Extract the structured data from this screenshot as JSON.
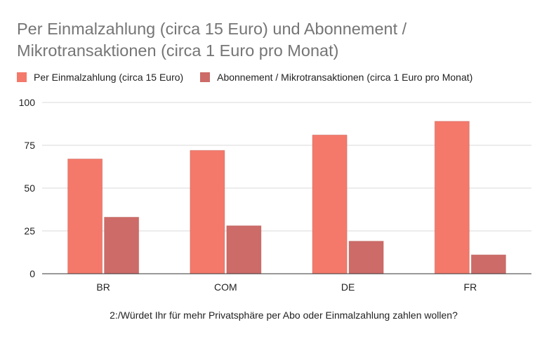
{
  "chart_data": {
    "type": "bar",
    "title": "Per Einmalzahlung (circa 15 Euro) und Abonnement / Mikrotransaktionen (circa 1 Euro pro Monat)",
    "xlabel": "2:/Würdet Ihr für mehr Privatsphäre per Abo oder Einmalzahlung zahlen wollen?",
    "ylabel": "",
    "categories": [
      "BR",
      "COM",
      "DE",
      "FR"
    ],
    "series": [
      {
        "name": "Per Einmalzahlung (circa 15 Euro)",
        "values": [
          67,
          72,
          81,
          89
        ],
        "color": "#f4796b"
      },
      {
        "name": "Abonnement / Mikrotransaktionen (circa 1 Euro pro Monat)",
        "values": [
          33,
          28,
          19,
          11
        ],
        "color": "#cc6b68"
      }
    ],
    "ylim": [
      0,
      100
    ],
    "yticks": [
      0,
      25,
      50,
      75,
      100
    ],
    "grid": true,
    "legend_position": "top-left"
  }
}
